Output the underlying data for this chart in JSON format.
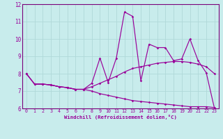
{
  "xlabel": "Windchill (Refroidissement éolien,°C)",
  "xlim": [
    -0.5,
    23.5
  ],
  "ylim": [
    6,
    12
  ],
  "bg_color": "#c8ecec",
  "grid_color": "#b0d8d8",
  "line_color": "#990099",
  "spine_color": "#7a007a",
  "xticks": [
    0,
    1,
    2,
    3,
    4,
    5,
    6,
    7,
    8,
    9,
    10,
    11,
    12,
    13,
    14,
    15,
    16,
    17,
    18,
    19,
    20,
    21,
    22,
    23
  ],
  "yticks": [
    6,
    7,
    8,
    9,
    10,
    11,
    12
  ],
  "series": [
    {
      "x": [
        0,
        1,
        2,
        3,
        4,
        5,
        6,
        7,
        8,
        9,
        10,
        11,
        12,
        13,
        14,
        15,
        16,
        17,
        18,
        19,
        20,
        21,
        22,
        23
      ],
      "y": [
        8.0,
        7.4,
        7.4,
        7.35,
        7.25,
        7.2,
        7.1,
        7.1,
        7.45,
        8.9,
        7.5,
        8.9,
        11.55,
        11.3,
        7.6,
        9.7,
        9.5,
        9.5,
        8.75,
        8.85,
        10.0,
        8.75,
        8.05,
        6.0
      ]
    },
    {
      "x": [
        0,
        1,
        2,
        3,
        4,
        5,
        6,
        7,
        8,
        9,
        10,
        11,
        12,
        13,
        14,
        15,
        16,
        17,
        18,
        19,
        20,
        21,
        22,
        23
      ],
      "y": [
        8.0,
        7.4,
        7.4,
        7.35,
        7.25,
        7.2,
        7.1,
        7.1,
        7.25,
        7.45,
        7.65,
        7.85,
        8.1,
        8.3,
        8.4,
        8.5,
        8.6,
        8.65,
        8.7,
        8.7,
        8.65,
        8.55,
        8.4,
        8.0
      ]
    },
    {
      "x": [
        0,
        1,
        2,
        3,
        4,
        5,
        6,
        7,
        8,
        9,
        10,
        11,
        12,
        13,
        14,
        15,
        16,
        17,
        18,
        19,
        20,
        21,
        22,
        23
      ],
      "y": [
        8.0,
        7.4,
        7.4,
        7.35,
        7.25,
        7.2,
        7.1,
        7.1,
        7.0,
        6.85,
        6.75,
        6.65,
        6.55,
        6.45,
        6.4,
        6.35,
        6.3,
        6.25,
        6.2,
        6.15,
        6.1,
        6.1,
        6.1,
        6.05
      ]
    }
  ]
}
